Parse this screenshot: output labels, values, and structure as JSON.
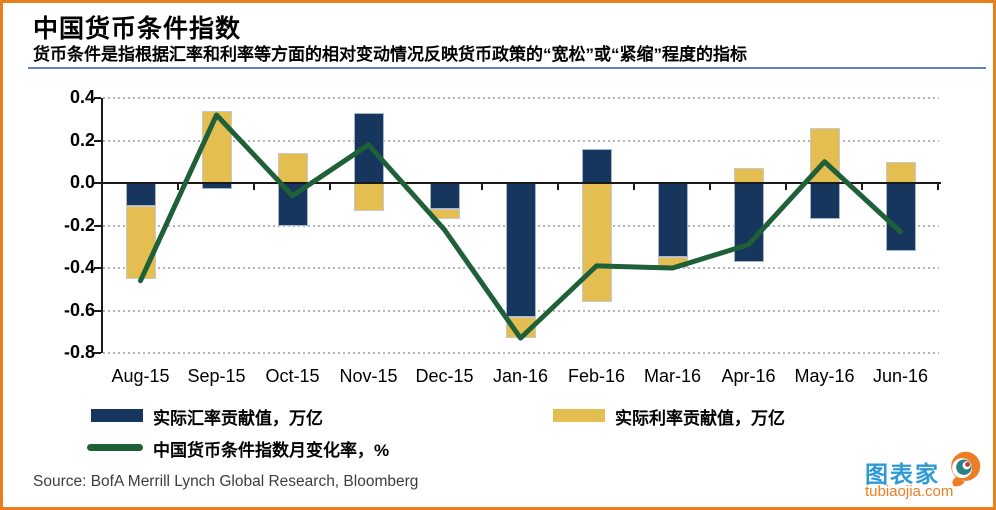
{
  "header": {
    "title": "中国货币条件指数",
    "subtitle": "货币条件是指根据汇率和利率等方面的相对变动情况反映货币政策的“宽松”或“紧缩”程度的指标"
  },
  "chart_data": {
    "type": "bar+line combo, bars stacked by sign",
    "categories": [
      "Aug-15",
      "Sep-15",
      "Oct-15",
      "Nov-15",
      "Dec-15",
      "Jan-16",
      "Feb-16",
      "Mar-16",
      "Apr-16",
      "May-16",
      "Jun-16"
    ],
    "series": [
      {
        "name": "实际汇率贡献值，万亿",
        "type": "bar",
        "color": "#17365D",
        "values": [
          -0.11,
          -0.03,
          -0.2,
          0.33,
          -0.12,
          -0.63,
          0.16,
          -0.35,
          -0.37,
          -0.17,
          -0.32
        ]
      },
      {
        "name": "实际利率贡献值，万亿",
        "type": "bar",
        "color": "#E4BE50",
        "values": [
          -0.34,
          0.34,
          0.14,
          -0.13,
          -0.05,
          -0.1,
          -0.56,
          -0.05,
          0.07,
          0.26,
          0.1
        ]
      },
      {
        "name": "中国货币条件指数月变化率，%",
        "type": "line",
        "color": "#1F6038",
        "values": [
          -0.46,
          0.32,
          -0.06,
          0.18,
          -0.22,
          -0.73,
          -0.39,
          -0.4,
          -0.29,
          0.1,
          -0.23
        ]
      }
    ],
    "ylim": [
      -0.8,
      0.4
    ],
    "ytick_labels": [
      "0.4",
      "0.2",
      "0.0",
      "-0.2",
      "-0.4",
      "-0.6",
      "-0.8"
    ],
    "ytick_values": [
      0.4,
      0.2,
      0.0,
      -0.2,
      -0.4,
      -0.6,
      -0.8
    ],
    "grid": "horizontal dotted gray, solid black zero line",
    "legend_position": "below chart, two rows"
  },
  "source": {
    "text": "Source: BofA Merrill Lynch Global Research, Bloomberg"
  },
  "branding": {
    "name": "图表家",
    "url": "tubiaojia.com"
  },
  "colors": {
    "frame_border": "#E8801F",
    "header_rule": "#5B84C4",
    "bar_exchange_rate": "#17365D",
    "bar_interest_rate": "#E4BE50",
    "line_mci": "#1F6038",
    "brand_blue": "#2E9AD5",
    "brand_orange": "#F07D21"
  }
}
